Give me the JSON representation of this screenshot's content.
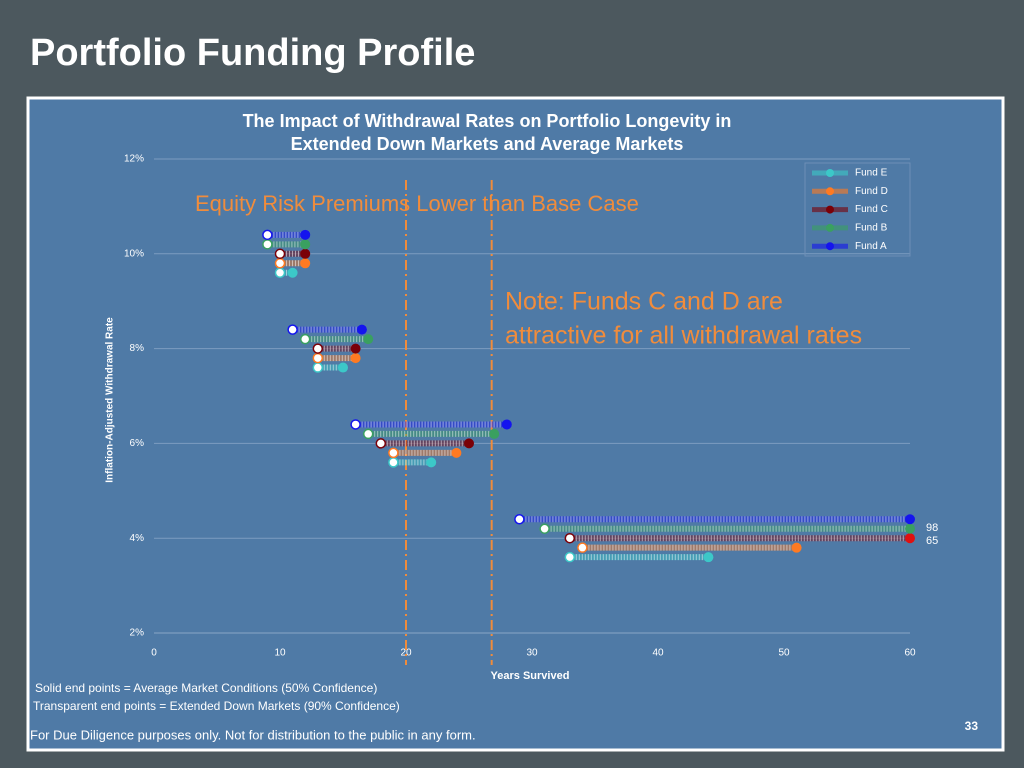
{
  "slide": {
    "title": "Portfolio Funding Profile",
    "page_number": "33",
    "footnotes": [
      "Solid end points = Average Market Conditions (50% Confidence)",
      "Transparent end points = Extended Down Markets (90% Confidence)"
    ],
    "disclaimer": "For Due Diligence purposes only. Not for distribution to the public in any form."
  },
  "chart_data": {
    "type": "dumbbell",
    "title": [
      "The Impact of Withdrawal Rates on Portfolio Longevity in",
      "Extended Down Markets and Average Markets"
    ],
    "x_label": "Years Survived",
    "y_label": "Inflation-Adjusted Withdrawal Rate",
    "annotations": [
      "Equity  Risk Premiums Lower than Base Case",
      "Note: Funds C and D are",
      "attractive for all withdrawal rates",
      "98",
      "65"
    ],
    "xlim": [
      0,
      60
    ],
    "xticks": [
      0,
      10,
      20,
      30,
      40,
      50,
      60
    ],
    "ylim": [
      2,
      12
    ],
    "yticks": [
      {
        "value": 2,
        "label": "2%"
      },
      {
        "value": 4,
        "label": "4%"
      },
      {
        "value": 6,
        "label": "6%"
      },
      {
        "value": 8,
        "label": "8%"
      },
      {
        "value": 10,
        "label": "10%"
      },
      {
        "value": 12,
        "label": "12%"
      }
    ],
    "grid": true,
    "legend": "upper right",
    "reference_lines": [
      20,
      26.8
    ],
    "reference_color": "#f08c3c",
    "series": [
      {
        "name": "Fund E",
        "color": "#3cc8c8",
        "y": [
          9.6,
          7.6,
          5.6,
          3.6
        ],
        "start": [
          10,
          13,
          19,
          33
        ],
        "end": [
          11,
          15,
          22,
          44
        ]
      },
      {
        "name": "Fund D",
        "color": "#ff7a22",
        "y": [
          9.8,
          7.8,
          5.8,
          3.8
        ],
        "start": [
          10,
          13,
          19,
          34
        ],
        "end": [
          12,
          16,
          24,
          51
        ]
      },
      {
        "name": "Fund C",
        "color": "#7a0008",
        "y": [
          10.0,
          8.0,
          6.0,
          4.0
        ],
        "start": [
          10,
          13,
          18,
          33
        ],
        "end": [
          12,
          16,
          25,
          60
        ]
      },
      {
        "name": "Fund B",
        "color": "#3aa060",
        "y": [
          10.2,
          8.2,
          6.2,
          4.2
        ],
        "start": [
          9,
          12,
          17,
          31
        ],
        "end": [
          12,
          17,
          27,
          60
        ]
      },
      {
        "name": "Fund A",
        "color": "#1414ee",
        "y": [
          10.4,
          8.4,
          6.4,
          4.4
        ],
        "start": [
          9,
          11,
          16,
          29
        ],
        "end": [
          12,
          16.5,
          28,
          60
        ]
      }
    ]
  }
}
